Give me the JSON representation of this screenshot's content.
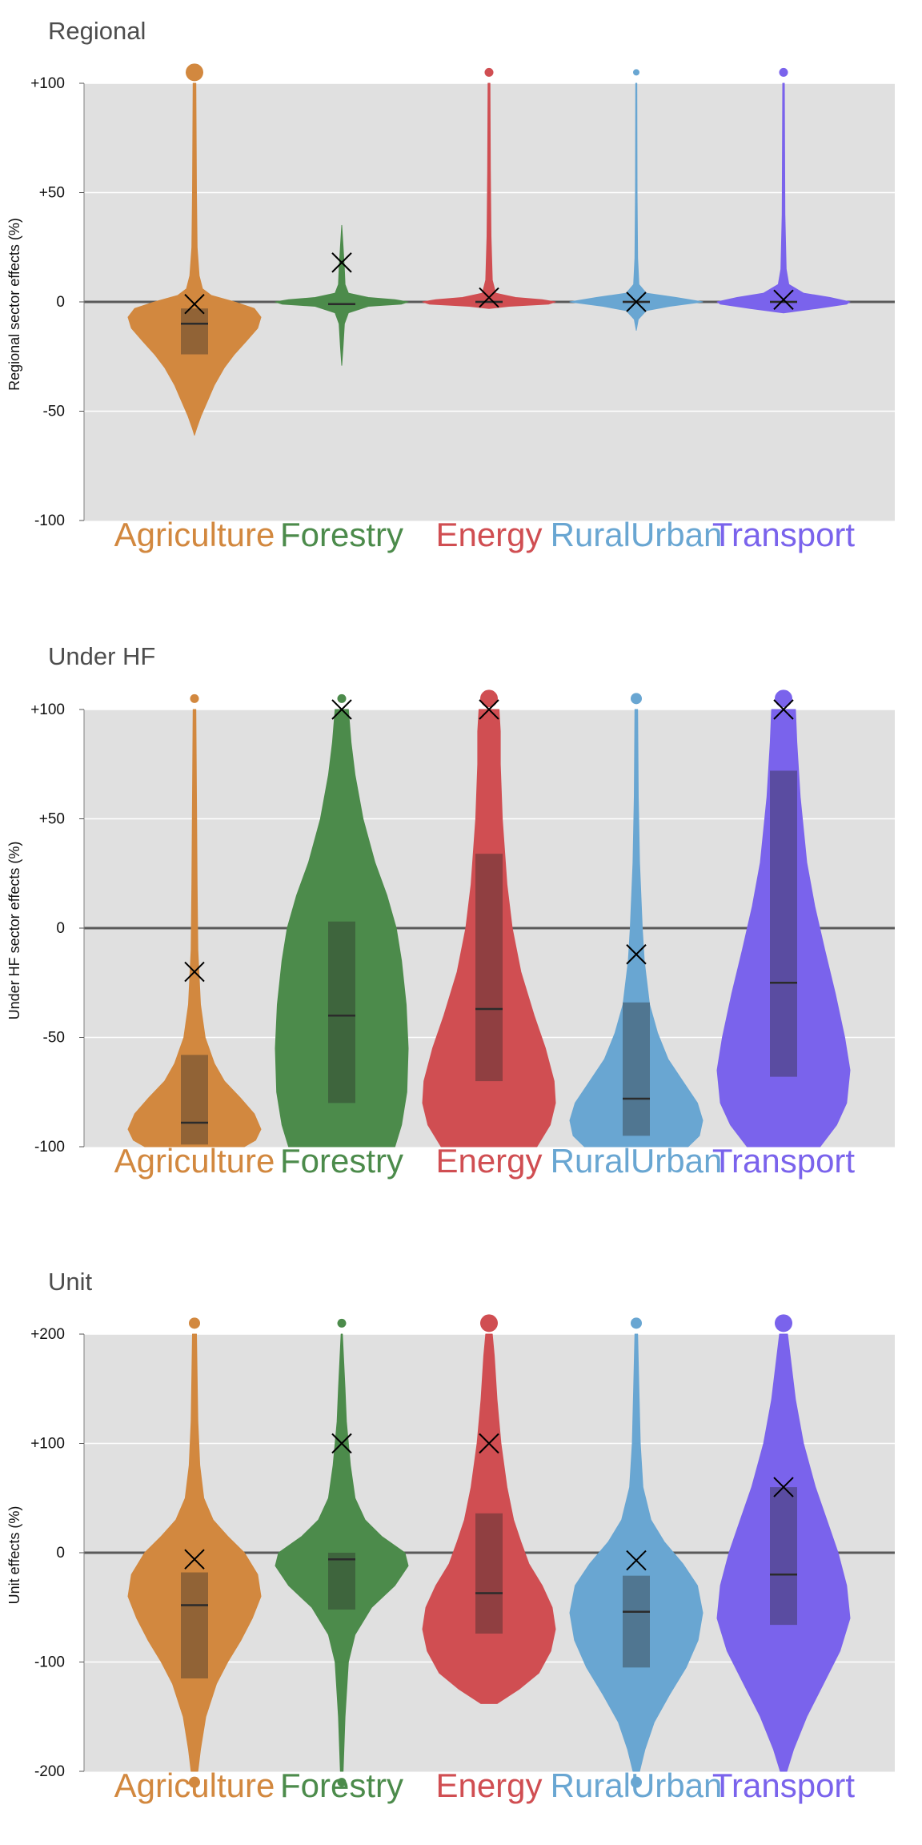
{
  "chart_data": [
    {
      "type": "violin",
      "title": "Regional",
      "xlabel": "",
      "ylabel": "Regional sector effects (%)",
      "ylim": [
        -100,
        100
      ],
      "yticks": [
        -100,
        -50,
        0,
        50,
        100
      ],
      "ytick_labels": [
        "-100",
        "-50",
        "0",
        "+50",
        "+100"
      ],
      "grid": true,
      "zero_line": true,
      "categories": [
        "Agriculture",
        "Forestry",
        "Energy",
        "RuralUrban",
        "Transport"
      ],
      "colors": [
        "#d2883f",
        "#4c8b4b",
        "#d04e52",
        "#69a6d2",
        "#7a63ec"
      ],
      "series": [
        {
          "median": -10,
          "q1": -24,
          "q3": -3,
          "mean": -1,
          "outlier": 105,
          "outlier_size": "large",
          "profile": [
            [
              -61,
              0
            ],
            [
              -58,
              0.03
            ],
            [
              -52,
              0.1
            ],
            [
              -45,
              0.2
            ],
            [
              -38,
              0.3
            ],
            [
              -30,
              0.45
            ],
            [
              -24,
              0.6
            ],
            [
              -18,
              0.78
            ],
            [
              -12,
              0.95
            ],
            [
              -7,
              1
            ],
            [
              -3,
              0.9
            ],
            [
              0,
              0.6
            ],
            [
              3,
              0.25
            ],
            [
              6,
              0.12
            ],
            [
              12,
              0.07
            ],
            [
              25,
              0.04
            ],
            [
              50,
              0.03
            ],
            [
              100,
              0.02
            ]
          ]
        },
        {
          "median": -1,
          "q1": -1.5,
          "q3": -0.5,
          "mean": 18,
          "outlier": null,
          "outlier_size": null,
          "profile": [
            [
              -29,
              0
            ],
            [
              -20,
              0.02
            ],
            [
              -10,
              0.04
            ],
            [
              -5,
              0.1
            ],
            [
              -2,
              0.4
            ],
            [
              -1,
              0.9
            ],
            [
              0,
              1
            ],
            [
              1,
              0.8
            ],
            [
              2,
              0.4
            ],
            [
              4,
              0.1
            ],
            [
              8,
              0.05
            ],
            [
              15,
              0.04
            ],
            [
              25,
              0.02
            ],
            [
              35,
              0
            ]
          ]
        },
        {
          "median": 0,
          "q1": -0.5,
          "q3": 0.5,
          "mean": 2,
          "outlier": 105,
          "outlier_size": "small",
          "profile": [
            [
              -3,
              0
            ],
            [
              -2,
              0.3
            ],
            [
              -1,
              0.9
            ],
            [
              0,
              1
            ],
            [
              1,
              0.8
            ],
            [
              2,
              0.4
            ],
            [
              4,
              0.1
            ],
            [
              10,
              0.05
            ],
            [
              30,
              0.03
            ],
            [
              60,
              0.02
            ],
            [
              100,
              0.015
            ]
          ]
        },
        {
          "median": 0,
          "q1": -0.5,
          "q3": 0.5,
          "mean": 0,
          "outlier": 105,
          "outlier_size": "tiny",
          "profile": [
            [
              -13,
              0
            ],
            [
              -8,
              0.03
            ],
            [
              -4,
              0.15
            ],
            [
              -2,
              0.5
            ],
            [
              0,
              1
            ],
            [
              2,
              0.6
            ],
            [
              4,
              0.15
            ],
            [
              8,
              0.04
            ],
            [
              20,
              0.02
            ],
            [
              50,
              0.012
            ],
            [
              100,
              0.008
            ]
          ]
        },
        {
          "median": 0,
          "q1": -0.5,
          "q3": 0.5,
          "mean": 1,
          "outlier": 105,
          "outlier_size": "small",
          "profile": [
            [
              -5,
              0
            ],
            [
              -3,
              0.5
            ],
            [
              -1,
              0.95
            ],
            [
              0,
              1
            ],
            [
              2,
              0.7
            ],
            [
              4,
              0.3
            ],
            [
              8,
              0.08
            ],
            [
              15,
              0.04
            ],
            [
              40,
              0.02
            ],
            [
              100,
              0.012
            ]
          ]
        }
      ]
    },
    {
      "type": "violin",
      "title": "Under HF",
      "xlabel": "",
      "ylabel": "Under HF sector effects (%)",
      "ylim": [
        -100,
        100
      ],
      "yticks": [
        -100,
        -50,
        0,
        50,
        100
      ],
      "ytick_labels": [
        "-100",
        "-50",
        "0",
        "+50",
        "+100"
      ],
      "grid": true,
      "zero_line": true,
      "categories": [
        "Agriculture",
        "Forestry",
        "Energy",
        "RuralUrban",
        "Transport"
      ],
      "colors": [
        "#d2883f",
        "#4c8b4b",
        "#d04e52",
        "#69a6d2",
        "#7a63ec"
      ],
      "series": [
        {
          "median": -89,
          "q1": -99,
          "q3": -58,
          "mean": -20,
          "outlier": 105,
          "outlier_size": "small",
          "profile": [
            [
              -100,
              0.75
            ],
            [
              -97,
              0.92
            ],
            [
              -92,
              1
            ],
            [
              -85,
              0.9
            ],
            [
              -78,
              0.7
            ],
            [
              -70,
              0.45
            ],
            [
              -62,
              0.3
            ],
            [
              -50,
              0.16
            ],
            [
              -35,
              0.09
            ],
            [
              -10,
              0.05
            ],
            [
              20,
              0.04
            ],
            [
              60,
              0.03
            ],
            [
              100,
              0.02
            ]
          ]
        },
        {
          "median": -40,
          "q1": -80,
          "q3": 3,
          "mean": 100,
          "outlier": 105,
          "outlier_size": "small",
          "profile": [
            [
              -100,
              0.8
            ],
            [
              -90,
              0.9
            ],
            [
              -75,
              0.98
            ],
            [
              -55,
              1
            ],
            [
              -35,
              0.97
            ],
            [
              -15,
              0.9
            ],
            [
              0,
              0.82
            ],
            [
              15,
              0.68
            ],
            [
              30,
              0.5
            ],
            [
              50,
              0.32
            ],
            [
              70,
              0.2
            ],
            [
              85,
              0.14
            ],
            [
              100,
              0.1
            ]
          ]
        },
        {
          "median": -37,
          "q1": -70,
          "q3": 34,
          "mean": 100,
          "outlier": 105,
          "outlier_size": "large",
          "profile": [
            [
              -100,
              0.72
            ],
            [
              -90,
              0.92
            ],
            [
              -80,
              1
            ],
            [
              -70,
              0.98
            ],
            [
              -55,
              0.85
            ],
            [
              -40,
              0.68
            ],
            [
              -20,
              0.48
            ],
            [
              0,
              0.35
            ],
            [
              20,
              0.27
            ],
            [
              50,
              0.2
            ],
            [
              75,
              0.17
            ],
            [
              90,
              0.17
            ],
            [
              100,
              0.15
            ]
          ]
        },
        {
          "median": -78,
          "q1": -95,
          "q3": -34,
          "mean": -12,
          "outlier": 105,
          "outlier_size": "medium",
          "profile": [
            [
              -100,
              0.78
            ],
            [
              -95,
              0.95
            ],
            [
              -88,
              1
            ],
            [
              -80,
              0.92
            ],
            [
              -70,
              0.7
            ],
            [
              -60,
              0.48
            ],
            [
              -48,
              0.32
            ],
            [
              -35,
              0.2
            ],
            [
              -15,
              0.12
            ],
            [
              0,
              0.09
            ],
            [
              30,
              0.05
            ],
            [
              60,
              0.03
            ],
            [
              100,
              0.02
            ]
          ]
        },
        {
          "median": -25,
          "q1": -68,
          "q3": 72,
          "mean": 100,
          "outlier": 105,
          "outlier_size": "large",
          "profile": [
            [
              -100,
              0.55
            ],
            [
              -90,
              0.8
            ],
            [
              -80,
              0.95
            ],
            [
              -65,
              1
            ],
            [
              -50,
              0.92
            ],
            [
              -30,
              0.78
            ],
            [
              -10,
              0.62
            ],
            [
              10,
              0.47
            ],
            [
              30,
              0.35
            ],
            [
              60,
              0.25
            ],
            [
              85,
              0.2
            ],
            [
              100,
              0.18
            ]
          ]
        }
      ]
    },
    {
      "type": "violin",
      "title": "Unit",
      "xlabel": "",
      "ylabel": "Unit effects (%)",
      "ylim": [
        -200,
        200
      ],
      "yticks": [
        -200,
        -100,
        0,
        100,
        200
      ],
      "ytick_labels": [
        "-200",
        "-100",
        "0",
        "+100",
        "+200"
      ],
      "grid": true,
      "zero_line": true,
      "categories": [
        "Agriculture",
        "Forestry",
        "Energy",
        "RuralUrban",
        "Transport"
      ],
      "colors": [
        "#d2883f",
        "#4c8b4b",
        "#d04e52",
        "#69a6d2",
        "#7a63ec"
      ],
      "series": [
        {
          "median": -48,
          "q1": -115,
          "q3": -18,
          "mean": -6,
          "outlier_high": 210,
          "outlier_low": -210,
          "outlier_size": "medium",
          "profile": [
            [
              -200,
              0.05
            ],
            [
              -180,
              0.09
            ],
            [
              -150,
              0.17
            ],
            [
              -120,
              0.33
            ],
            [
              -100,
              0.5
            ],
            [
              -80,
              0.7
            ],
            [
              -60,
              0.87
            ],
            [
              -40,
              1
            ],
            [
              -20,
              0.95
            ],
            [
              0,
              0.75
            ],
            [
              15,
              0.5
            ],
            [
              30,
              0.28
            ],
            [
              50,
              0.14
            ],
            [
              80,
              0.08
            ],
            [
              120,
              0.05
            ],
            [
              200,
              0.03
            ]
          ]
        },
        {
          "median": -6,
          "q1": -52,
          "q3": 0,
          "mean": 100,
          "outlier_high": 210,
          "outlier_low": -210,
          "outlier_size": "small",
          "profile": [
            [
              -200,
              0.02
            ],
            [
              -150,
              0.05
            ],
            [
              -100,
              0.1
            ],
            [
              -75,
              0.2
            ],
            [
              -50,
              0.45
            ],
            [
              -30,
              0.8
            ],
            [
              -12,
              1
            ],
            [
              0,
              0.95
            ],
            [
              15,
              0.6
            ],
            [
              30,
              0.35
            ],
            [
              50,
              0.2
            ],
            [
              80,
              0.13
            ],
            [
              120,
              0.07
            ],
            [
              150,
              0.05
            ],
            [
              200,
              0.01
            ]
          ]
        },
        {
          "median": -37,
          "q1": -74,
          "q3": 36,
          "mean": 100,
          "outlier_high": 210,
          "outlier_low": null,
          "outlier_size": "large",
          "profile": [
            [
              -138,
              0.12
            ],
            [
              -125,
              0.45
            ],
            [
              -110,
              0.75
            ],
            [
              -90,
              0.93
            ],
            [
              -70,
              1
            ],
            [
              -50,
              0.95
            ],
            [
              -30,
              0.8
            ],
            [
              -10,
              0.6
            ],
            [
              10,
              0.48
            ],
            [
              30,
              0.37
            ],
            [
              60,
              0.27
            ],
            [
              100,
              0.18
            ],
            [
              140,
              0.12
            ],
            [
              180,
              0.08
            ],
            [
              200,
              0.05
            ]
          ]
        },
        {
          "median": -54,
          "q1": -105,
          "q3": -21,
          "mean": -7,
          "outlier_high": 210,
          "outlier_low": -210,
          "outlier_size": "medium",
          "profile": [
            [
              -200,
              0.05
            ],
            [
              -180,
              0.13
            ],
            [
              -155,
              0.27
            ],
            [
              -130,
              0.5
            ],
            [
              -105,
              0.75
            ],
            [
              -80,
              0.93
            ],
            [
              -55,
              1
            ],
            [
              -30,
              0.92
            ],
            [
              -10,
              0.7
            ],
            [
              10,
              0.42
            ],
            [
              30,
              0.22
            ],
            [
              60,
              0.1
            ],
            [
              100,
              0.06
            ],
            [
              150,
              0.04
            ],
            [
              200,
              0.02
            ]
          ]
        },
        {
          "median": -20,
          "q1": -66,
          "q3": 60,
          "mean": 60,
          "outlier_high": 210,
          "outlier_low": null,
          "outlier_size": "large",
          "profile": [
            [
              -200,
              0.05
            ],
            [
              -180,
              0.15
            ],
            [
              -150,
              0.35
            ],
            [
              -120,
              0.6
            ],
            [
              -90,
              0.85
            ],
            [
              -60,
              1
            ],
            [
              -30,
              0.95
            ],
            [
              0,
              0.82
            ],
            [
              30,
              0.65
            ],
            [
              60,
              0.48
            ],
            [
              100,
              0.3
            ],
            [
              140,
              0.18
            ],
            [
              180,
              0.1
            ],
            [
              200,
              0.06
            ]
          ]
        }
      ]
    }
  ]
}
